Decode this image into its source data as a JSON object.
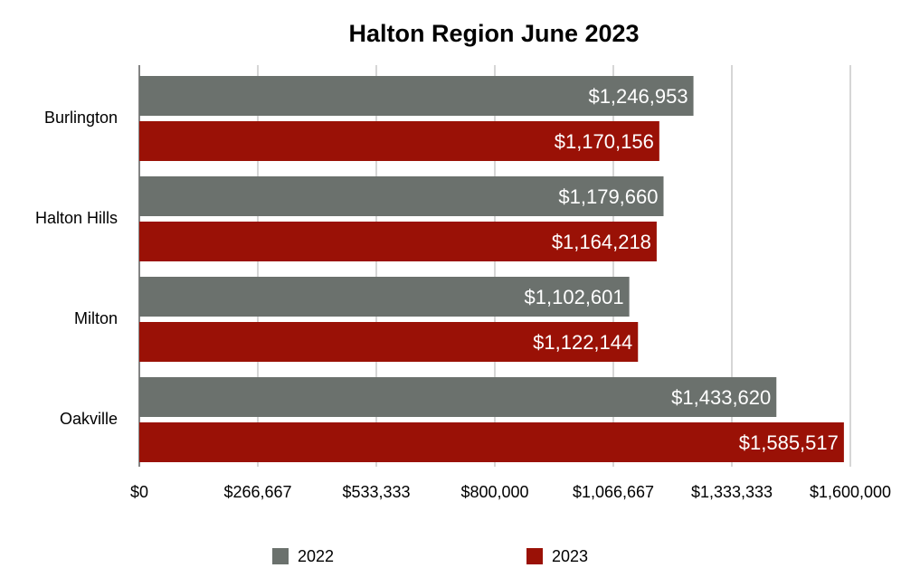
{
  "chart_data": {
    "type": "bar",
    "orientation": "horizontal",
    "title": "Halton Region June 2023",
    "categories": [
      "Burlington",
      "Halton Hills",
      "Milton",
      "Oakville"
    ],
    "series": [
      {
        "name": "2022",
        "color": "#6b716d",
        "values": [
          1246953,
          1179660,
          1102601,
          1433620
        ],
        "labels": [
          "$1,246,953",
          "$1,179,660",
          "$1,102,601",
          "$1,433,620"
        ]
      },
      {
        "name": "2023",
        "color": "#9a1106",
        "values": [
          1170156,
          1164218,
          1122144,
          1585517
        ],
        "labels": [
          "$1,170,156",
          "$1,164,218",
          "$1,122,144",
          "$1,585,517"
        ]
      }
    ],
    "xlim": [
      0,
      1600000
    ],
    "x_ticks": [
      0,
      266667,
      533333,
      800000,
      1066667,
      1333333,
      1600000
    ],
    "x_tick_labels": [
      "$0",
      "$266,667",
      "$533,333",
      "$800,000",
      "$1,066,667",
      "$1,333,333",
      "$1,600,000"
    ],
    "grid": true,
    "legend_position": "bottom"
  }
}
